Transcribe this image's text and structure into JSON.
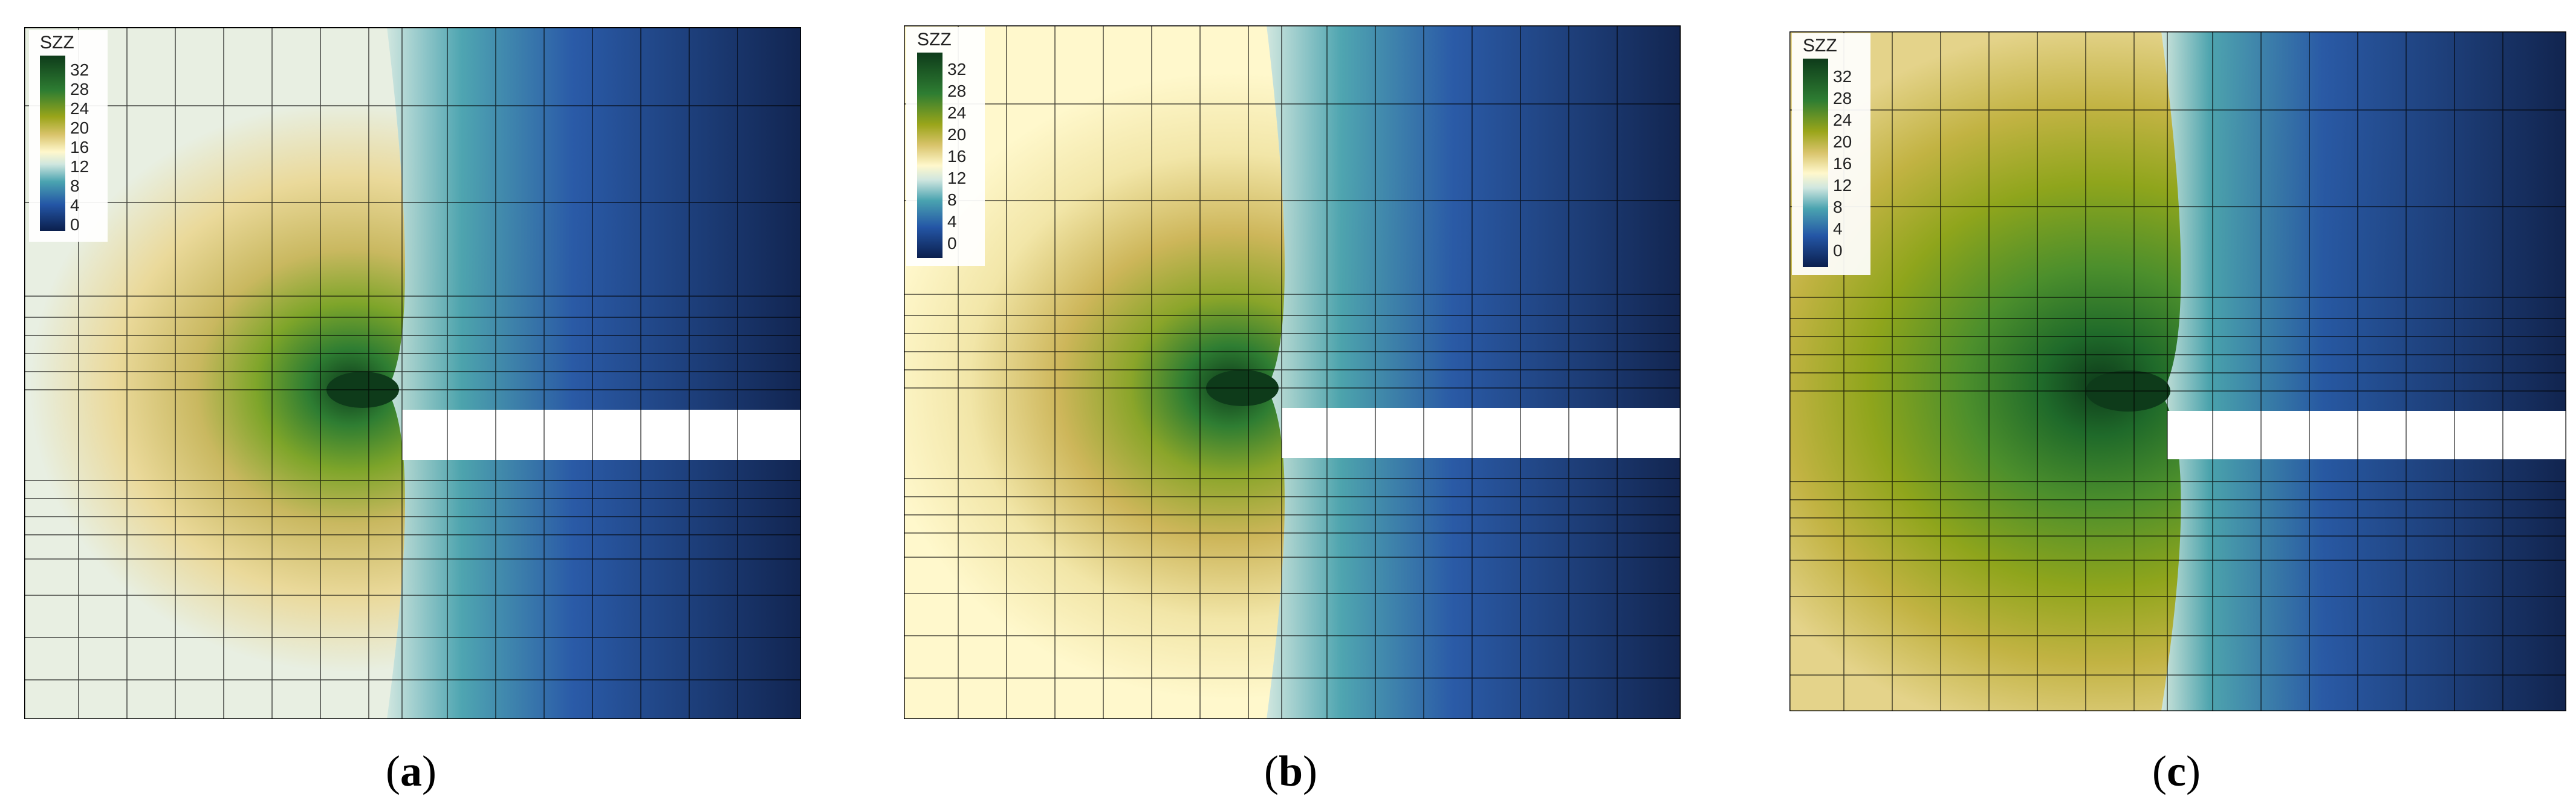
{
  "figure": {
    "panels": [
      {
        "id": "a",
        "caption_letter": "a",
        "legend_title": "SZZ"
      },
      {
        "id": "b",
        "caption_letter": "b",
        "legend_title": "SZZ"
      },
      {
        "id": "c",
        "caption_letter": "c",
        "legend_title": "SZZ"
      }
    ],
    "legend_levels": [
      "32",
      "28",
      "24",
      "20",
      "16",
      "12",
      "8",
      "4",
      "0"
    ],
    "colors": {
      "dark_green": "#0e3b1a",
      "green": "#2e7d32",
      "olive": "#9aa51a",
      "khaki": "#d8c36a",
      "cream": "#fff8cc",
      "pale_teal": "#cfe6df",
      "teal": "#4aa3b0",
      "blue": "#2456a6",
      "navy": "#0b1f4d"
    }
  }
}
